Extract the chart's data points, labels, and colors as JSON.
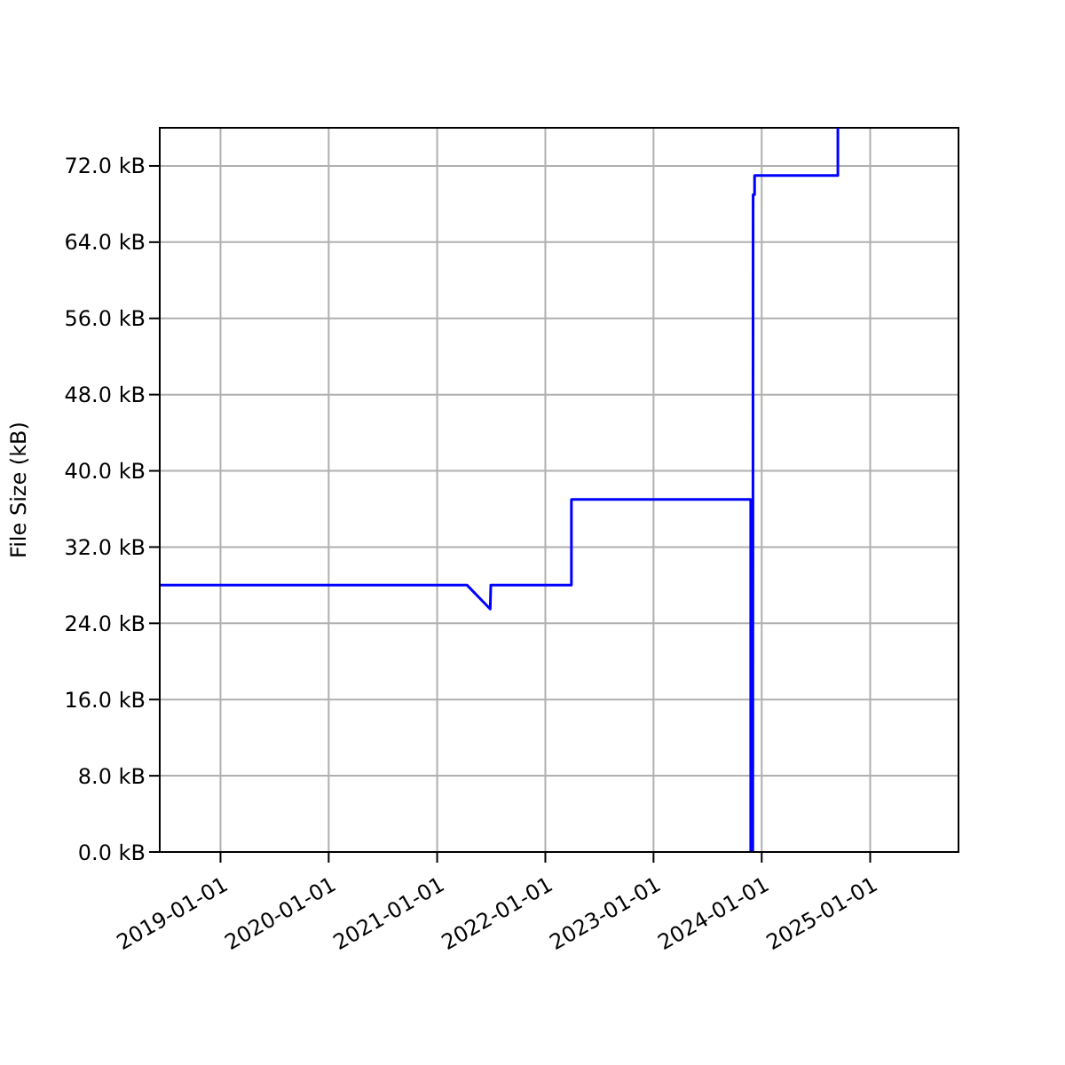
{
  "chart_data": {
    "type": "line",
    "ylabel": "File Size (kB)",
    "x": [
      "2018-06-10",
      "2021-04-12",
      "2021-06-29",
      "2021-07-01",
      "2022-03-30",
      "2022-03-30",
      "2023-11-25",
      "2023-11-25",
      "2023-12-02",
      "2023-12-03",
      "2023-12-08",
      "2023-12-08",
      "2024-09-14",
      "2024-09-14"
    ],
    "series": [
      {
        "color": "#0000ff",
        "values": [
          28,
          28,
          25.5,
          28,
          28,
          37,
          37,
          0,
          0,
          69,
          69,
          71,
          71,
          76
        ]
      }
    ],
    "xlim": [
      "2018-06-10",
      "2025-10-26"
    ],
    "xticks": [
      "2019-01-01",
      "2020-01-01",
      "2021-01-01",
      "2022-01-01",
      "2023-01-01",
      "2024-01-01",
      "2025-01-01"
    ],
    "ylim": [
      0,
      76
    ],
    "yticks": [
      {
        "value": 0,
        "label": "0.0 kB"
      },
      {
        "value": 8,
        "label": "8.0 kB"
      },
      {
        "value": 16,
        "label": "16.0 kB"
      },
      {
        "value": 24,
        "label": "24.0 kB"
      },
      {
        "value": 32,
        "label": "32.0 kB"
      },
      {
        "value": 40,
        "label": "40.0 kB"
      },
      {
        "value": 48,
        "label": "48.0 kB"
      },
      {
        "value": 56,
        "label": "56.0 kB"
      },
      {
        "value": 64,
        "label": "64.0 kB"
      },
      {
        "value": 72,
        "label": "72.0 kB"
      }
    ],
    "grid": true,
    "marker": "none",
    "line_style": "solid"
  }
}
